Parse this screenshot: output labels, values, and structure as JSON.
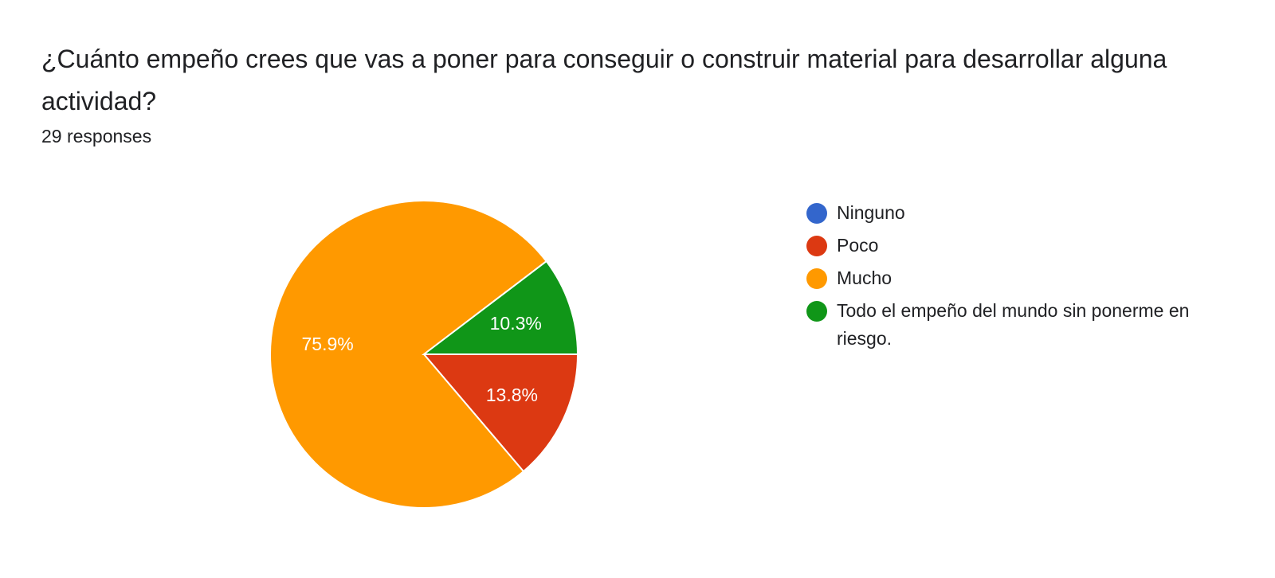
{
  "question": {
    "title": "¿Cuánto empeño crees que vas a poner para conseguir o construir material para desarrollar alguna actividad?",
    "responses": "29 responses"
  },
  "chart_data": {
    "type": "pie",
    "title": "¿Cuánto empeño crees que vas a poner para conseguir o construir material para desarrollar alguna actividad?",
    "total_responses": 29,
    "legend_position": "right",
    "categories": [
      "Ninguno",
      "Poco",
      "Mucho",
      "Todo el empeño del mundo sin ponerme en riesgo."
    ],
    "values": [
      0,
      4,
      22,
      3
    ],
    "percent_labels": [
      "",
      "13.8%",
      "75.9%",
      "10.3%"
    ],
    "colors": [
      "#3366cc",
      "#dc3912",
      "#ff9900",
      "#109618"
    ]
  }
}
